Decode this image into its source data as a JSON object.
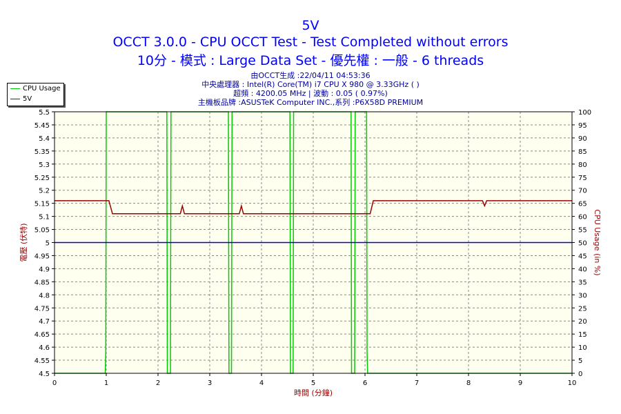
{
  "header": {
    "title": "5V",
    "line2": "OCCT 3.0.0 - CPU OCCT Test - Test Completed without errors",
    "line3": "10分 - 模式 : Large Data Set - 優先權 : 一般 - 6 threads",
    "info": [
      "由OCCT生成 :22/04/11 04:53:36",
      "中央處理器 : Intel(R) Core(TM) i7 CPU X 980 @ 3.33GHz (   )",
      "超頻 : 4200.05 MHz | 波動 : 0.05 ( 0.97%)",
      "主機板品牌 :ASUSTeK Computer INC.,系列 :P6X58D PREMIUM"
    ]
  },
  "colors": {
    "plot_bg": "#fffff0",
    "cpu_usage": "#00cc00",
    "voltage": "#990000",
    "reference": "#0000cc",
    "title": "#0000ff"
  },
  "chart_data": {
    "type": "line",
    "xlabel": "時間 (分鐘)",
    "ylabel": "電壓 (伏特)",
    "y2label": "CPU Usage (in %)",
    "xlim": [
      0,
      10
    ],
    "ylim": [
      4.5,
      5.5
    ],
    "y2lim": [
      0,
      100
    ],
    "grid": true,
    "legend_position": "top-left",
    "x_ticks": [
      "0",
      "1",
      "2",
      "3",
      "4",
      "5",
      "6",
      "7",
      "8",
      "9",
      "10"
    ],
    "y_ticks": [
      "4.5",
      "4.55",
      "4.6",
      "4.65",
      "4.7",
      "4.75",
      "4.8",
      "4.85",
      "4.9",
      "4.95",
      "5",
      "5.05",
      "5.1",
      "5.15",
      "5.2",
      "5.25",
      "5.3",
      "5.35",
      "5.4",
      "5.45",
      "5.5"
    ],
    "y2_ticks": [
      "0",
      "5",
      "10",
      "15",
      "20",
      "25",
      "30",
      "35",
      "40",
      "45",
      "50",
      "55",
      "60",
      "65",
      "70",
      "75",
      "80",
      "85",
      "90",
      "95",
      "100"
    ],
    "series": [
      {
        "name": "CPU Usage",
        "axis": "right",
        "points": [
          [
            0,
            0
          ],
          [
            0.98,
            0
          ],
          [
            0.99,
            8
          ],
          [
            1.0,
            100
          ],
          [
            2.17,
            100
          ],
          [
            2.18,
            0
          ],
          [
            2.24,
            0
          ],
          [
            2.25,
            100
          ],
          [
            3.36,
            100
          ],
          [
            3.37,
            0
          ],
          [
            3.42,
            0
          ],
          [
            3.43,
            100
          ],
          [
            4.55,
            100
          ],
          [
            4.56,
            0
          ],
          [
            4.61,
            0
          ],
          [
            4.62,
            100
          ],
          [
            5.73,
            100
          ],
          [
            5.74,
            0
          ],
          [
            5.8,
            0
          ],
          [
            5.81,
            100
          ],
          [
            6.03,
            100
          ],
          [
            6.04,
            8
          ],
          [
            6.05,
            0
          ],
          [
            10,
            0
          ]
        ]
      },
      {
        "name": "5V",
        "axis": "left",
        "points": [
          [
            0,
            5.16
          ],
          [
            1.05,
            5.16
          ],
          [
            1.12,
            5.11
          ],
          [
            2.43,
            5.11
          ],
          [
            2.47,
            5.14
          ],
          [
            2.51,
            5.11
          ],
          [
            3.57,
            5.11
          ],
          [
            3.61,
            5.14
          ],
          [
            3.65,
            5.11
          ],
          [
            6.1,
            5.11
          ],
          [
            6.16,
            5.16
          ],
          [
            8.27,
            5.16
          ],
          [
            8.31,
            5.14
          ],
          [
            8.35,
            5.16
          ],
          [
            10,
            5.16
          ]
        ]
      },
      {
        "axis": "left",
        "points": [
          [
            0,
            5.0
          ],
          [
            10,
            5.0
          ]
        ]
      }
    ]
  }
}
